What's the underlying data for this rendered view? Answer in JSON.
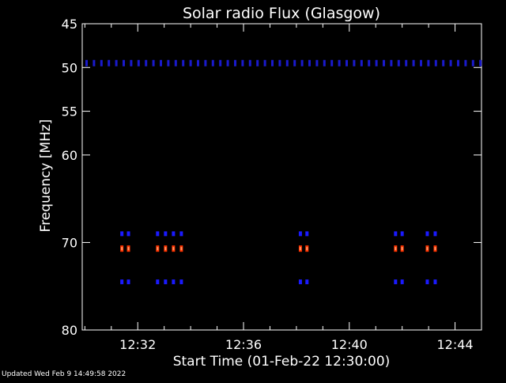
{
  "chart_data": {
    "type": "heatmap",
    "title": "Solar radio Flux (Glasgow)",
    "xlabel": "Start Time (01-Feb-22 12:30:00)",
    "ylabel": "Frequency [MHz]",
    "xlim_minutes_after_1230": [
      -0.1,
      15.0
    ],
    "ylim": [
      45,
      80
    ],
    "y_scale": "inverted",
    "x_ticks": [
      "12:32",
      "12:36",
      "12:40",
      "12:44"
    ],
    "x_tick_minutes": [
      2,
      6,
      10,
      14
    ],
    "y_ticks": [
      45,
      50,
      55,
      60,
      70,
      80
    ],
    "colors": {
      "background": "#000000",
      "axes": "#ffffff",
      "low": "#1a1aff",
      "high": "#ff3300",
      "mid": "#ff9966"
    },
    "bursts": {
      "times_minutes": [
        1.4,
        1.65,
        2.75,
        3.05,
        3.35,
        3.65,
        8.15,
        8.4,
        11.75,
        12.0,
        12.95,
        13.25
      ],
      "frequencies": [
        69.0,
        70.7,
        74.5
      ]
    },
    "horizontal_band": {
      "frequency": 49.5
    }
  },
  "footer": "Updated Wed Feb  9 14:49:58 2022"
}
